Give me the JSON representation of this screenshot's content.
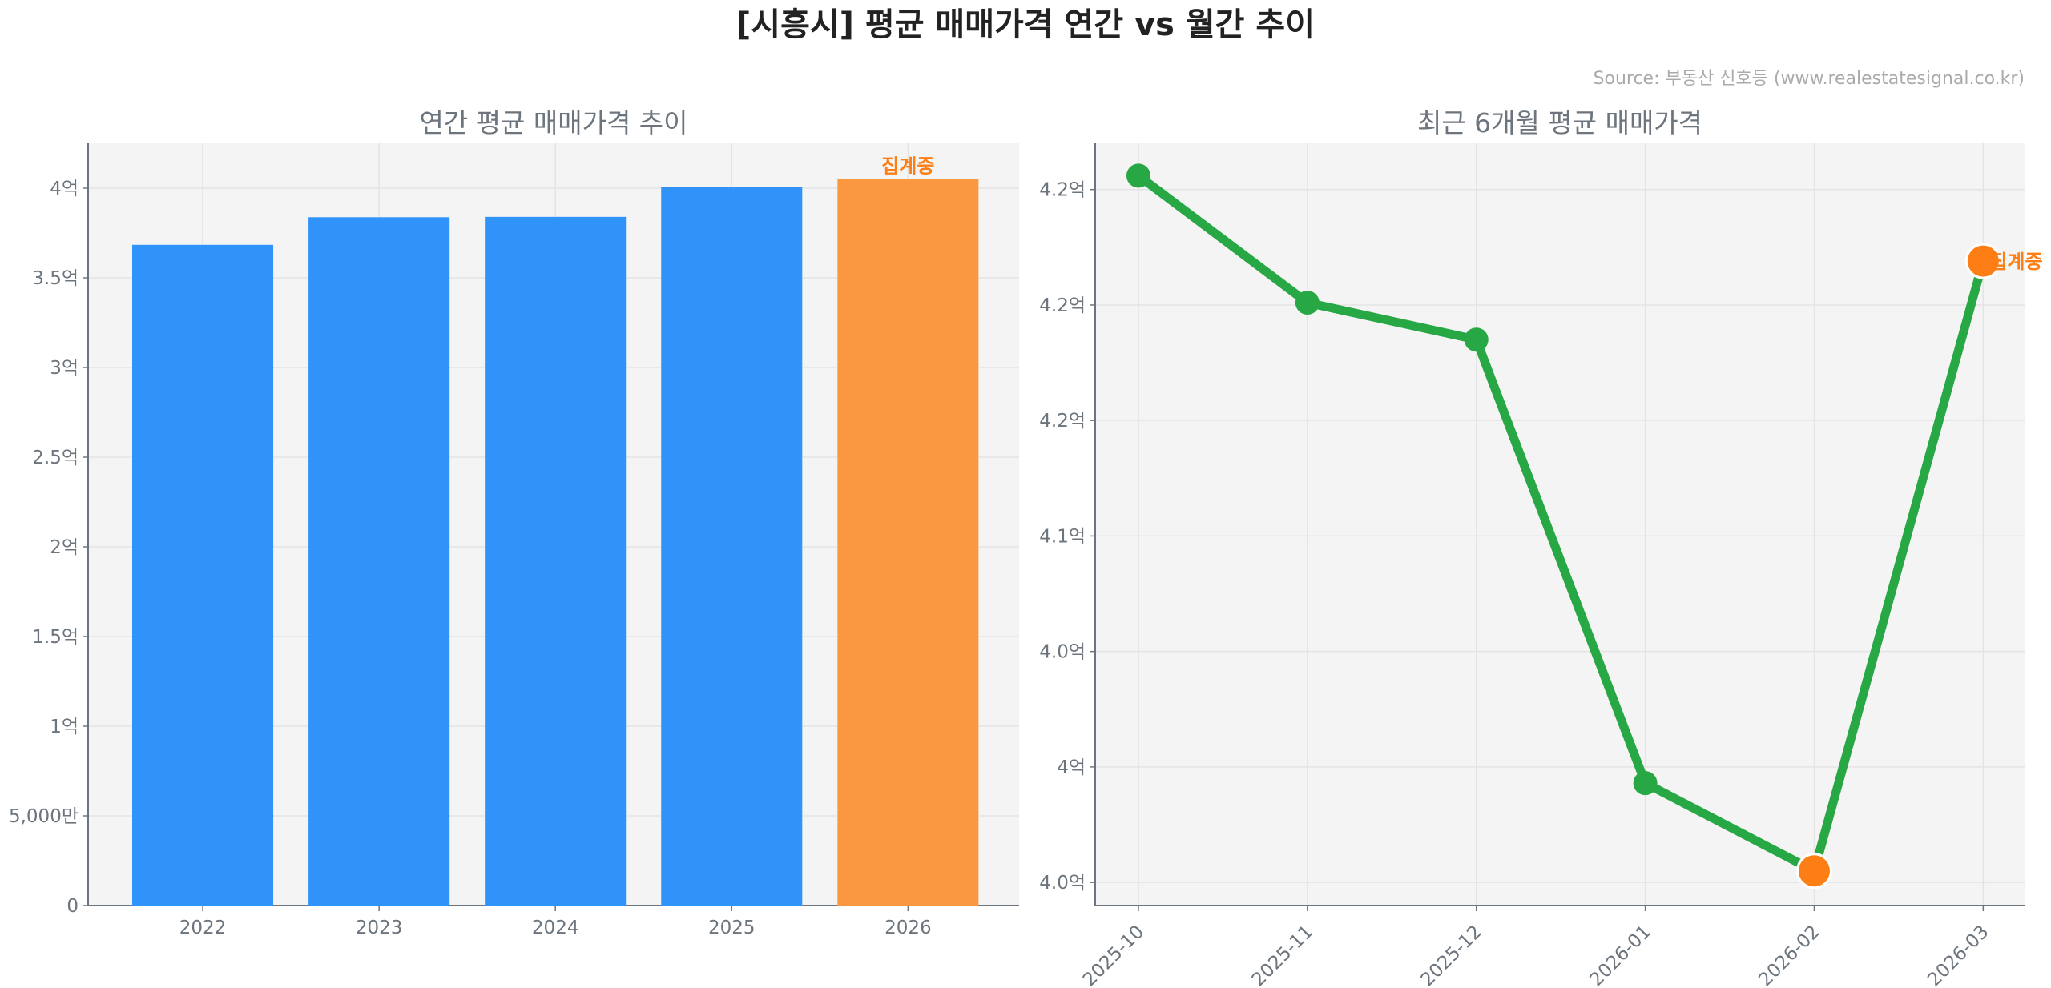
{
  "title": "[시흥시] 평균 매매가격 연간 vs 월간 추이",
  "source": "Source: 부동산 신호등 (www.realestatesignal.co.kr)",
  "colors": {
    "bar": "#3093fa",
    "bar_current": "#f99840",
    "line": "#28a745",
    "marker_current": "#fd7e14",
    "label_current": "#fd7e14",
    "plot_bg": "#f4f4f4",
    "axis_text": "#6c757d"
  },
  "chart_data": [
    {
      "type": "bar",
      "title": "연간 평균 매매가격 추이",
      "categories": [
        "2022",
        "2023",
        "2024",
        "2025",
        "2026"
      ],
      "values": [
        3.684,
        3.838,
        3.84,
        4.007,
        4.051
      ],
      "unit": "억",
      "highlight_index": 4,
      "annotation": "집계중",
      "ylim": [
        0,
        4.25
      ],
      "yticks": [
        0,
        0.5,
        1,
        1.5,
        2,
        2.5,
        3,
        3.5,
        4
      ],
      "ytick_labels": [
        "0",
        "5,000만",
        "1억",
        "1.5억",
        "2억",
        "2.5억",
        "3억",
        "3.5억",
        "4억"
      ],
      "grid": true
    },
    {
      "type": "line",
      "title": "최근 6개월 평균 매매가격",
      "categories": [
        "2025-10",
        "2025-11",
        "2025-12",
        "2026-01",
        "2026-02",
        "2026-03"
      ],
      "values": [
        4.256,
        4.201,
        4.185,
        3.993,
        3.955,
        4.219
      ],
      "unit": "억",
      "highlight_indices": [
        4,
        5
      ],
      "annotation": "집계중",
      "annotation_index": 5,
      "ylim": [
        3.94,
        4.27
      ],
      "yticks": [
        3.95,
        4.0,
        4.05,
        4.1,
        4.15,
        4.2,
        4.25
      ],
      "ytick_labels": [
        "4.0억",
        "4억",
        "4.0억",
        "4.1억",
        "4.2억",
        "4.2억",
        "4.2억"
      ],
      "grid": true
    }
  ]
}
